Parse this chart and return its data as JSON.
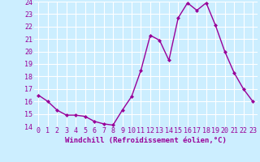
{
  "x": [
    0,
    1,
    2,
    3,
    4,
    5,
    6,
    7,
    8,
    9,
    10,
    11,
    12,
    13,
    14,
    15,
    16,
    17,
    18,
    19,
    20,
    21,
    22,
    23
  ],
  "y": [
    16.5,
    16.0,
    15.3,
    14.9,
    14.9,
    14.8,
    14.4,
    14.2,
    14.1,
    15.3,
    16.4,
    18.5,
    21.3,
    20.9,
    19.3,
    22.7,
    23.9,
    23.3,
    23.9,
    22.1,
    20.0,
    18.3,
    17.0,
    16.0
  ],
  "line_color": "#990099",
  "marker": "D",
  "marker_size": 2.0,
  "bg_color": "#cceeff",
  "grid_color": "#ffffff",
  "xlabel": "Windchill (Refroidissement éolien,°C)",
  "xlabel_color": "#990099",
  "tick_color": "#990099",
  "ylim": [
    14,
    24
  ],
  "yticks": [
    14,
    15,
    16,
    17,
    18,
    19,
    20,
    21,
    22,
    23,
    24
  ],
  "xticks": [
    0,
    1,
    2,
    3,
    4,
    5,
    6,
    7,
    8,
    9,
    10,
    11,
    12,
    13,
    14,
    15,
    16,
    17,
    18,
    19,
    20,
    21,
    22,
    23
  ],
  "linewidth": 1.0,
  "tick_fontsize": 6.0,
  "xlabel_fontsize": 6.5
}
